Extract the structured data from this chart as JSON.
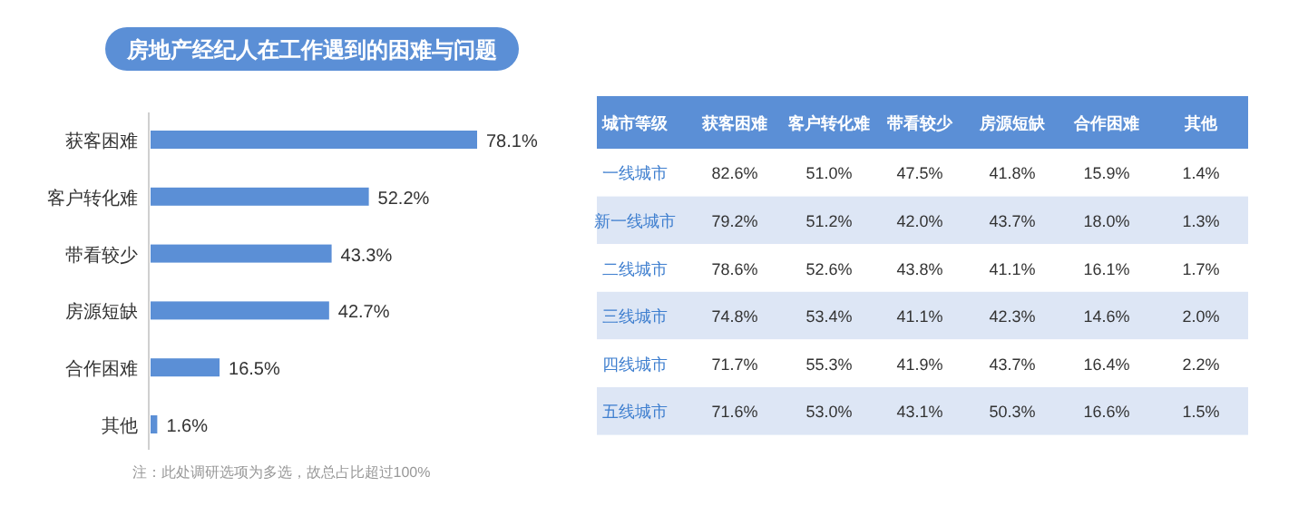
{
  "chart_data": [
    {
      "type": "bar",
      "orientation": "horizontal",
      "title": "房地产经纪人在工作遇到的困难与问题",
      "categories": [
        "获客困难",
        "客户转化难",
        "带看较少",
        "房源短缺",
        "合作困难",
        "其他"
      ],
      "values": [
        78.1,
        52.2,
        43.3,
        42.7,
        16.5,
        1.6
      ],
      "value_labels": [
        "78.1%",
        "52.2%",
        "43.3%",
        "42.7%",
        "16.5%",
        "1.6%"
      ],
      "color": "#5b8fd6",
      "annotations": [
        "注：此处调研选项为多选，故总占比超过100%"
      ]
    },
    {
      "type": "heatmap",
      "ylabel": "城市等级",
      "categories": [
        "获客困难",
        "客户转化难",
        "带看较少",
        "房源短缺",
        "合作困难",
        "其他"
      ],
      "y_categories": [
        "一线城市",
        "新一线城市",
        "二线城市",
        "三线城市",
        "四线城市",
        "五线城市"
      ],
      "cells": [
        [
          82.6,
          51.0,
          47.5,
          41.8,
          15.9,
          1.4
        ],
        [
          79.2,
          51.2,
          42.0,
          43.7,
          18.0,
          1.3
        ],
        [
          78.6,
          52.6,
          43.8,
          41.1,
          16.1,
          1.7
        ],
        [
          74.8,
          53.4,
          41.1,
          42.3,
          14.6,
          2.0
        ],
        [
          71.7,
          55.3,
          41.9,
          43.7,
          16.4,
          2.2
        ],
        [
          71.6,
          53.0,
          43.1,
          50.3,
          16.6,
          1.5
        ]
      ],
      "cell_labels": [
        [
          "82.6%",
          "51.0%",
          "47.5%",
          "41.8%",
          "15.9%",
          "1.4%"
        ],
        [
          "79.2%",
          "51.2%",
          "42.0%",
          "43.7%",
          "18.0%",
          "1.3%"
        ],
        [
          "78.6%",
          "52.6%",
          "43.8%",
          "41.1%",
          "16.1%",
          "1.7%"
        ],
        [
          "74.8%",
          "53.4%",
          "41.1%",
          "42.3%",
          "14.6%",
          "2.0%"
        ],
        [
          "71.7%",
          "55.3%",
          "41.9%",
          "43.7%",
          "16.4%",
          "2.2%"
        ],
        [
          "71.6%",
          "53.0%",
          "43.1%",
          "50.3%",
          "16.6%",
          "1.5%"
        ]
      ]
    }
  ]
}
